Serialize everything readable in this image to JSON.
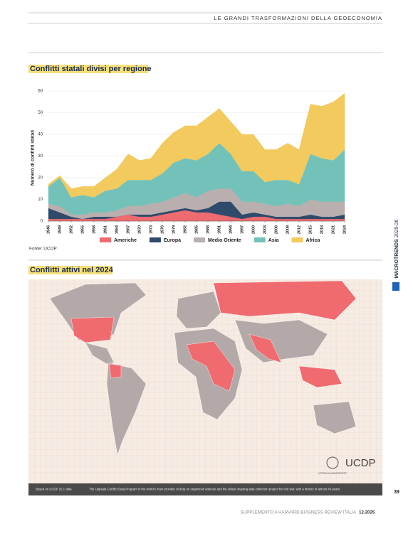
{
  "header": {
    "running_title": "LE GRANDI TRASFORMAZIONI DELLA GEOECONOMIA",
    "side_label": "MACROTRENDS",
    "side_year": "2025-26",
    "page_number": "39",
    "footer": "SUPPLEMENTO A HARVARD BUSINESS REVIEW ITALIA",
    "footer_issue": "12.2025"
  },
  "chart_data": {
    "type": "stacked_area",
    "title": "Conflitti statali divisi per regione",
    "ylabel": "Numero di conflitti statali",
    "source": "Fonte: UCDP",
    "x": [
      1946,
      1949,
      1952,
      1955,
      1958,
      1961,
      1964,
      1967,
      1970,
      1973,
      1976,
      1979,
      1982,
      1985,
      1988,
      1991,
      1994,
      1997,
      2000,
      2003,
      2006,
      2009,
      2012,
      2015,
      2018,
      2021,
      2024
    ],
    "xlim": [
      1946,
      2024
    ],
    "ylim": [
      0,
      62
    ],
    "yticks": [
      0,
      10,
      20,
      30,
      40,
      50,
      60
    ],
    "grid": true,
    "series": [
      {
        "name": "Americhe",
        "color": "#ef6b70",
        "values": [
          1,
          1,
          1,
          1,
          1,
          1,
          2,
          3,
          2,
          2,
          3,
          4,
          5,
          4,
          4,
          3,
          2,
          1,
          2,
          2,
          1,
          1,
          1,
          1,
          1,
          1,
          1
        ]
      },
      {
        "name": "Europa",
        "color": "#2f4a6a",
        "values": [
          5,
          3,
          1,
          0,
          1,
          1,
          0,
          0,
          1,
          1,
          1,
          1,
          1,
          1,
          2,
          6,
          7,
          2,
          2,
          1,
          1,
          1,
          1,
          2,
          1,
          1,
          2
        ]
      },
      {
        "name": "Medio Oriente",
        "color": "#b9afae",
        "values": [
          2,
          3,
          1,
          2,
          2,
          2,
          3,
          4,
          4,
          5,
          5,
          6,
          7,
          6,
          8,
          6,
          6,
          6,
          5,
          5,
          5,
          6,
          5,
          7,
          7,
          7,
          6
        ]
      },
      {
        "name": "Asia",
        "color": "#72c2ba",
        "values": [
          8,
          13,
          8,
          9,
          7,
          10,
          10,
          12,
          12,
          11,
          13,
          16,
          16,
          17,
          17,
          21,
          16,
          14,
          14,
          10,
          12,
          11,
          10,
          21,
          20,
          19,
          24
        ]
      },
      {
        "name": "Africa",
        "color": "#f2ca5e",
        "values": [
          1,
          1,
          4,
          4,
          5,
          6,
          9,
          12,
          9,
          10,
          14,
          14,
          15,
          16,
          17,
          16,
          15,
          17,
          17,
          15,
          14,
          17,
          16,
          23,
          24,
          27,
          26
        ]
      }
    ]
  },
  "map": {
    "title": "Conflitti attivi nel 2024",
    "logo": "UCDP",
    "logo_sub": "UPPSALA UNIVERSITET",
    "caption_source": "Based on UCDP 25.1 data",
    "caption": "The Uppsala Conflict Data Program is the world's main provider of data on organized violence and the oldest ongoing data collection project for civil war, with a history of almost 40 years."
  }
}
